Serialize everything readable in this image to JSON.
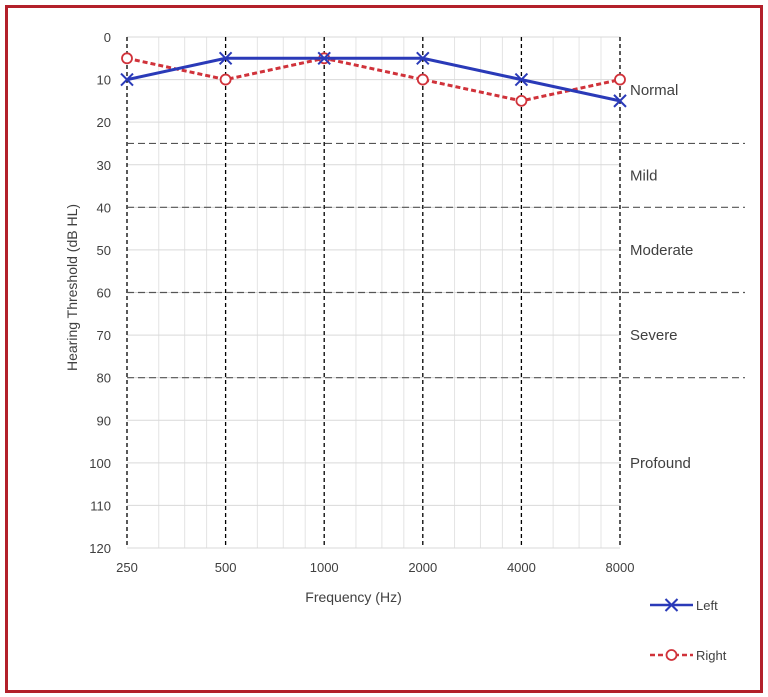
{
  "chart_data": {
    "type": "line",
    "title": "",
    "xlabel": "Frequency (Hz)",
    "ylabel": "Hearing Threshold (dB HL)",
    "x_scale": "log",
    "y_inverted": true,
    "ylim": [
      0,
      120
    ],
    "y_ticks": [
      0,
      10,
      20,
      30,
      40,
      50,
      60,
      70,
      80,
      90,
      100,
      110,
      120
    ],
    "categories": [
      "250",
      "500",
      "1000",
      "2000",
      "4000",
      "8000"
    ],
    "x": [
      250,
      500,
      1000,
      2000,
      4000,
      8000
    ],
    "series": [
      {
        "name": "Left",
        "color": "#2a3ab8",
        "marker": "x",
        "line_style": "solid",
        "values": [
          10,
          5,
          5,
          5,
          10,
          15
        ]
      },
      {
        "name": "Right",
        "color": "#d0323a",
        "marker": "o",
        "line_style": "dashed",
        "values": [
          5,
          10,
          5,
          10,
          15,
          10
        ]
      }
    ],
    "bands": [
      {
        "label": "Normal",
        "from": 0,
        "to": 25
      },
      {
        "label": "Mild",
        "from": 25,
        "to": 40
      },
      {
        "label": "Moderate",
        "from": 40,
        "to": 60
      },
      {
        "label": "Severe",
        "from": 60,
        "to": 80
      },
      {
        "label": "Profound",
        "from": 80,
        "to": 120
      }
    ],
    "legend_position": "bottom-right",
    "grid": true
  }
}
